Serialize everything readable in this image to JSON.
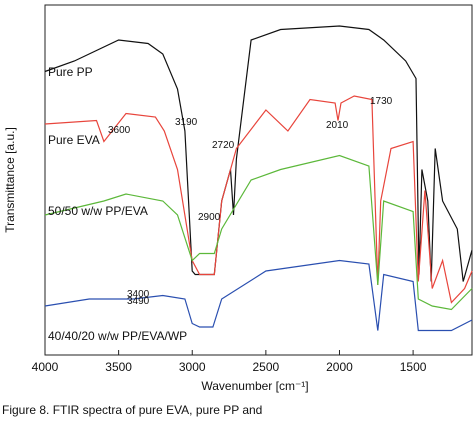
{
  "chart_data": {
    "type": "line",
    "x_label": "Wavenumber [cm⁻¹]",
    "y_label": "Transmittance [a.u.]",
    "caption": "Figure 8. FTIR spectra of pure EVA, pure PP and",
    "xlim": [
      4000,
      1100
    ],
    "xticks": [
      4000,
      3500,
      3000,
      2500,
      2000,
      1500
    ],
    "ylim": [
      0,
      100
    ],
    "series": [
      {
        "name": "Pure PP",
        "color": "#111111",
        "x": [
          4000,
          3800,
          3500,
          3300,
          3200,
          3100,
          3050,
          3000,
          2980,
          2850,
          2800,
          2740,
          2720,
          2700,
          2600,
          2400,
          2000,
          1800,
          1700,
          1550,
          1480,
          1460,
          1440,
          1400,
          1377,
          1350,
          1300,
          1200,
          1160,
          1100
        ],
        "values": [
          81,
          84,
          90,
          89,
          86,
          76,
          64,
          24,
          23,
          23,
          44,
          53,
          40,
          56,
          90,
          93,
          94,
          93,
          90,
          84,
          79,
          23,
          53,
          44,
          21,
          59,
          44,
          36,
          21,
          30
        ]
      },
      {
        "name": "Pure EVA",
        "color": "#e8453c",
        "x": [
          4000,
          3650,
          3600,
          3450,
          3250,
          3190,
          3100,
          3000,
          2950,
          2850,
          2800,
          2700,
          2500,
          2350,
          2200,
          2030,
          2010,
          1990,
          1900,
          1780,
          1740,
          1720,
          1650,
          1500,
          1465,
          1420,
          1370,
          1300,
          1240,
          1150,
          1100
        ],
        "values": [
          66,
          67,
          61,
          69,
          68,
          64,
          53,
          27,
          23,
          23,
          44,
          59,
          70,
          64,
          73,
          72,
          67,
          72,
          74,
          73,
          20,
          44,
          59,
          61,
          21,
          47,
          19,
          27,
          15,
          19,
          24
        ]
      },
      {
        "name": "50/50 w/w PP/EVA",
        "color": "#5cb83a",
        "x": [
          4000,
          3600,
          3450,
          3200,
          3100,
          3000,
          2950,
          2850,
          2800,
          2600,
          2400,
          2000,
          1800,
          1740,
          1700,
          1500,
          1465,
          1370,
          1240,
          1100
        ],
        "values": [
          40,
          44,
          46,
          44,
          40,
          27,
          29,
          29,
          36,
          50,
          53,
          57,
          54,
          20,
          44,
          41,
          16,
          14,
          13,
          19
        ]
      },
      {
        "name": "40/40/20 w/w PP/EVA/WP",
        "color": "#2a4fb0",
        "x": [
          4000,
          3700,
          3400,
          3200,
          3050,
          3000,
          2950,
          2860,
          2800,
          2500,
          2000,
          1800,
          1740,
          1700,
          1500,
          1465,
          1370,
          1240,
          1100
        ],
        "values": [
          14,
          16,
          16,
          17,
          16,
          9,
          8,
          8,
          16,
          24,
          27,
          26,
          7,
          23,
          21,
          7,
          7,
          7,
          10
        ]
      }
    ],
    "annotations": [
      "3600",
      "3190",
      "2720",
      "2900",
      "2010",
      "1730",
      "3400",
      "3490"
    ]
  }
}
